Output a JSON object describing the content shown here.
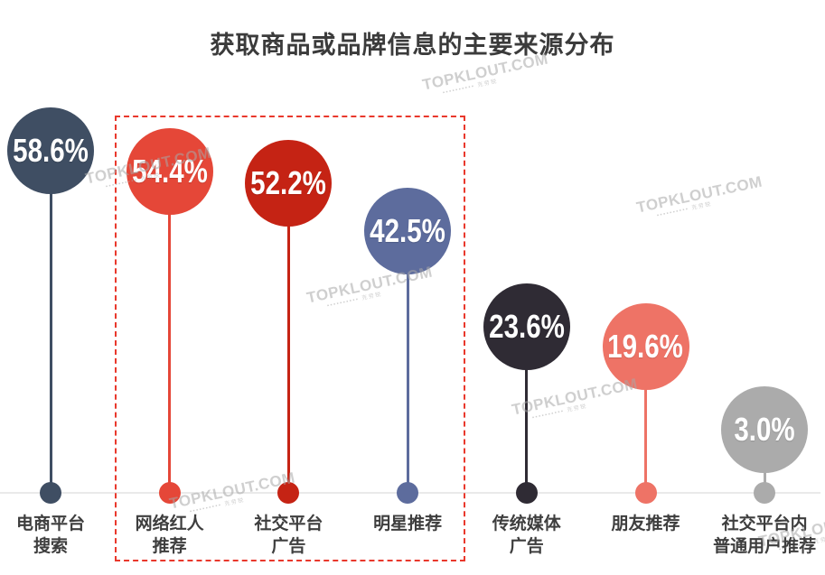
{
  "chart_data": {
    "type": "bar",
    "variant": "lollipop-balloon-infographic",
    "title": "获取商品或品牌信息的主要来源分布",
    "unit": "%",
    "categories": [
      "电商平台搜索",
      "网络红人推荐",
      "社交平台广告",
      "明星推荐",
      "传统媒体广告",
      "朋友推荐",
      "社交平台内普通用户推荐"
    ],
    "values": [
      58.6,
      54.4,
      52.2,
      42.5,
      23.6,
      19.6,
      3.0
    ],
    "value_labels": [
      "58.6%",
      "54.4%",
      "52.2%",
      "42.5%",
      "23.6%",
      "19.6%",
      "3.0%"
    ],
    "label_lines": [
      [
        "电商平台",
        "搜索"
      ],
      [
        "网络红人",
        "推荐"
      ],
      [
        "社交平台",
        "广告"
      ],
      [
        "明星推荐"
      ],
      [
        "传统媒体",
        "广告"
      ],
      [
        "朋友推荐"
      ],
      [
        "社交平台内",
        "普通用户推荐"
      ]
    ],
    "colors": [
      "#3f4e63",
      "#e54738",
      "#c52314",
      "#5d6c9d",
      "#2f2b34",
      "#ee7366",
      "#ababab"
    ],
    "highlighted_categories": [
      "网络红人推荐",
      "社交平台广告",
      "明星推荐"
    ],
    "highlight_box_color": "#e9382c",
    "baseline_color": "#eaeaea",
    "grid": false,
    "legend": false,
    "ylim": [
      0,
      65
    ]
  },
  "watermark": {
    "text": "TOPKLOUT.COM",
    "subtext": "▪▪▪▪▪▪▪▪▪▪ 克劳锐"
  }
}
